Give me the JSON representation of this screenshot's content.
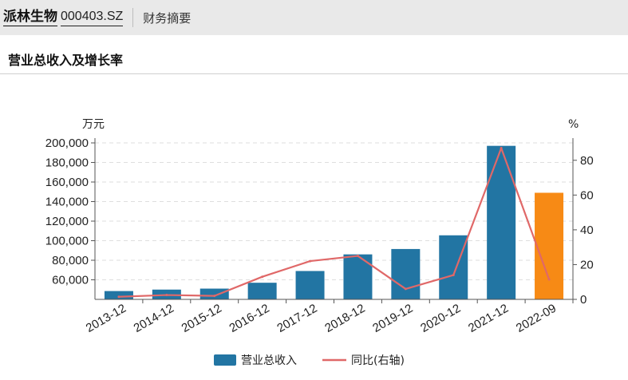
{
  "header": {
    "stock_name": "派林生物",
    "stock_code": "000403.SZ",
    "section_link": "财务摘要"
  },
  "section": {
    "title": "营业总收入及增长率"
  },
  "chart_data": {
    "type": "bar",
    "title": "",
    "categories": [
      "2013-12",
      "2014-12",
      "2015-12",
      "2016-12",
      "2017-12",
      "2018-12",
      "2019-12",
      "2020-12",
      "2021-12",
      "2022-09"
    ],
    "series": [
      {
        "name": "营业总收入",
        "type": "bar",
        "axis": "left",
        "values": [
          48500,
          50000,
          51000,
          57000,
          69000,
          86000,
          91500,
          105500,
          197000,
          149000
        ],
        "colors": [
          "#2275a3",
          "#2275a3",
          "#2275a3",
          "#2275a3",
          "#2275a3",
          "#2275a3",
          "#2275a3",
          "#2275a3",
          "#2275a3",
          "#f78a15"
        ]
      },
      {
        "name": "同比(右轴)",
        "type": "line",
        "axis": "right",
        "values": [
          1.5,
          2.5,
          2.0,
          13.0,
          22.0,
          25.0,
          6.0,
          14.0,
          87.0,
          11.5
        ],
        "color": "#e06868"
      }
    ],
    "y_left": {
      "unit": "万元",
      "min": 40000,
      "max": 200000,
      "ticks": [
        60000,
        80000,
        100000,
        120000,
        140000,
        160000,
        180000,
        200000
      ],
      "tick_labels": [
        "60,000",
        "80,000",
        "100,000",
        "120,000",
        "140,000",
        "160,000",
        "180,000",
        "200,000"
      ]
    },
    "y_right": {
      "unit": "%",
      "min": 0,
      "max": 90,
      "ticks": [
        0,
        20,
        40,
        60,
        80
      ],
      "tick_labels": [
        "0",
        "20",
        "40",
        "60",
        "80"
      ]
    },
    "grid": true,
    "legend_position": "bottom-center"
  }
}
